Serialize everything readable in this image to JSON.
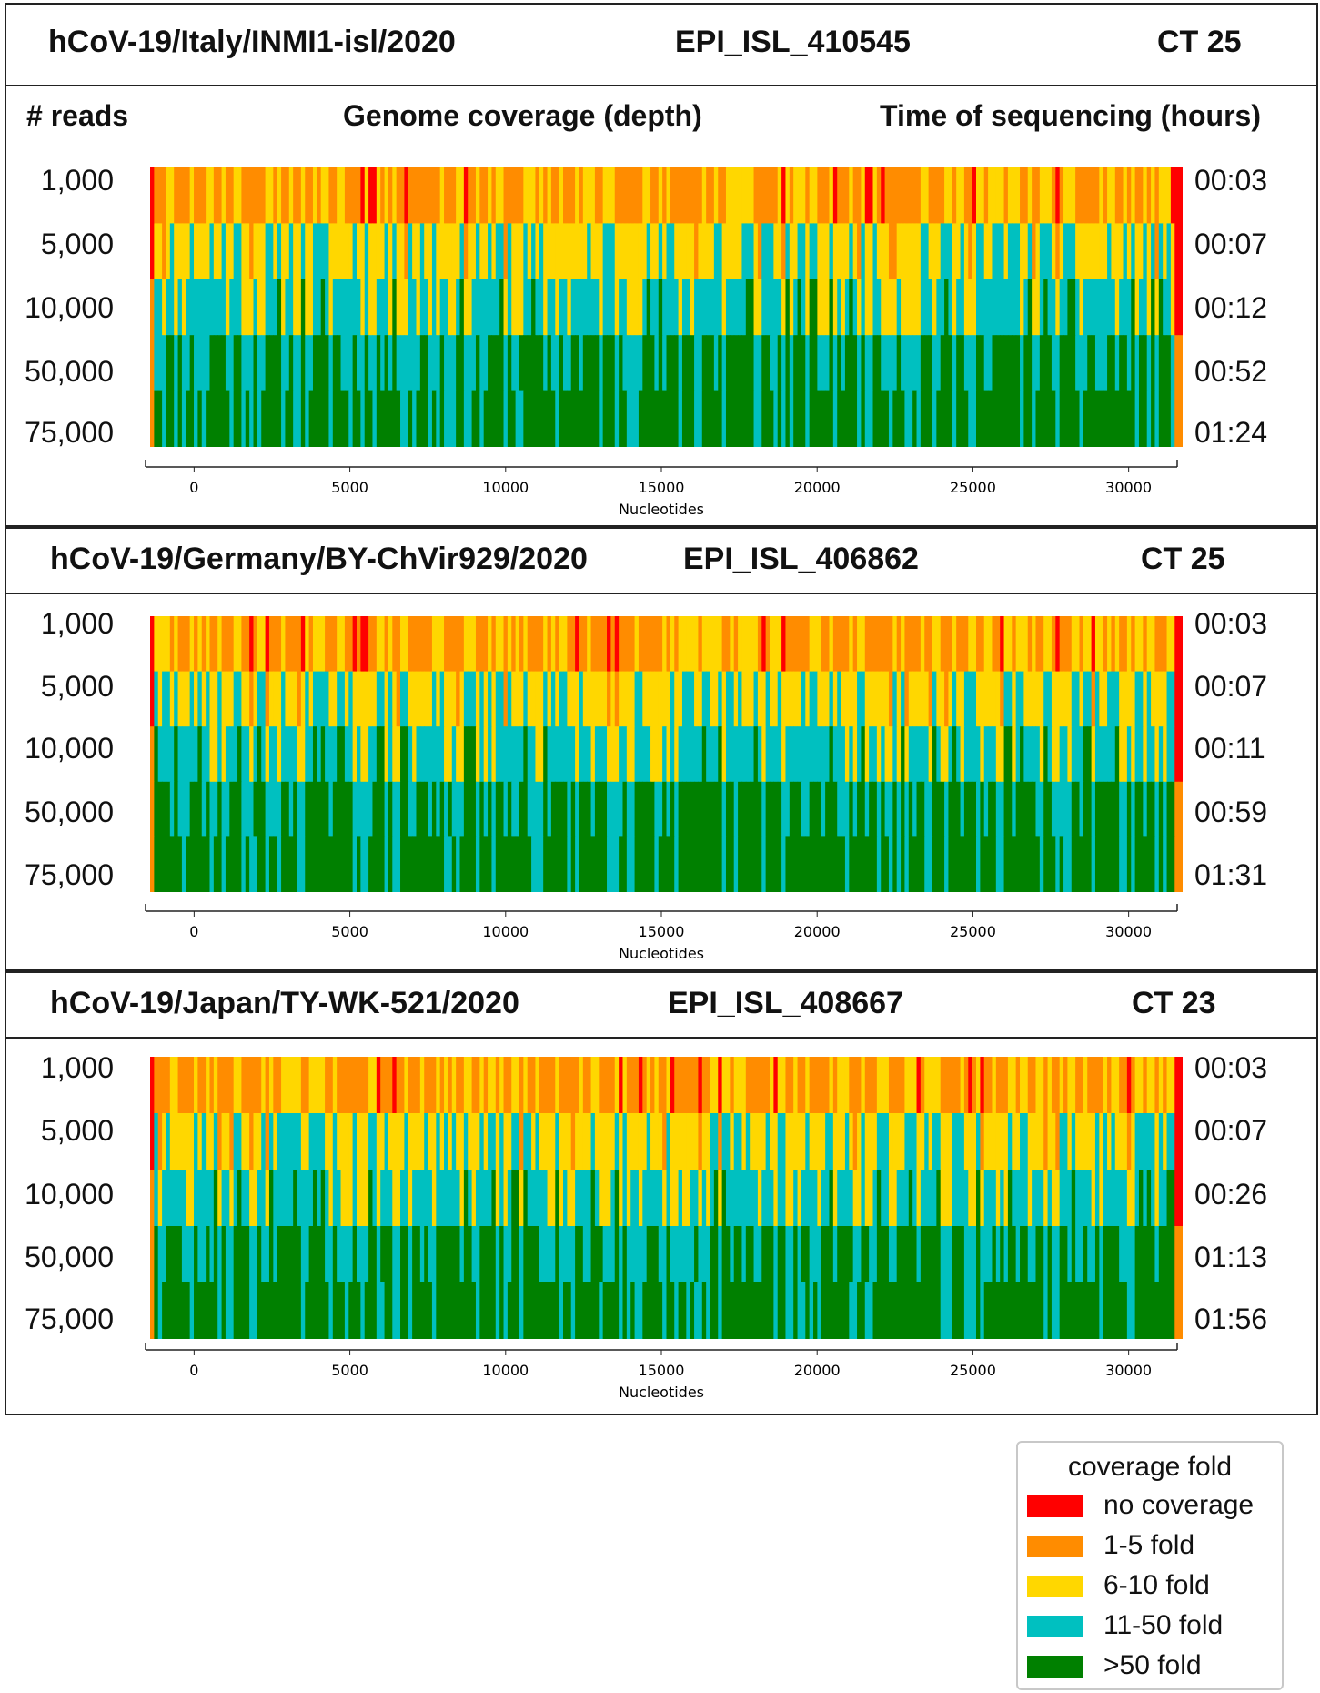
{
  "colors": {
    "no_coverage": "#ff0000",
    "fold_1_5": "#ff8c00",
    "fold_6_10": "#ffd700",
    "fold_11_50": "#00c0c0",
    "fold_gt_50": "#008000"
  },
  "column_headers": {
    "reads": "# reads",
    "coverage": "Genome coverage (depth)",
    "time": "Time of  sequencing (hours)"
  },
  "legend": {
    "title": "coverage fold",
    "items": [
      {
        "key": "no_coverage",
        "label": "no coverage"
      },
      {
        "key": "fold_1_5",
        "label": "1-5 fold"
      },
      {
        "key": "fold_6_10",
        "label": "6-10 fold"
      },
      {
        "key": "fold_11_50",
        "label": "11-50 fold"
      },
      {
        "key": "fold_gt_50",
        "label": ">50 fold"
      }
    ]
  },
  "chart_data": [
    {
      "type": "heatmap",
      "title": "hCoV-19/Italy/INMI1-isl/2020",
      "accession": "EPI_ISL_410545",
      "ct": "CT 25",
      "xlabel": "Nucleotides",
      "xlim": [
        -1500,
        31500
      ],
      "xticks": [
        "0",
        "5000",
        "10000",
        "15000",
        "20000",
        "25000",
        "30000"
      ],
      "rows": [
        "1,000",
        "5,000",
        "10,000",
        "50,000",
        "75,000"
      ],
      "times": [
        "00:03",
        "00:07",
        "00:12",
        "00:52",
        "01:24"
      ],
      "seed": 11
    },
    {
      "type": "heatmap",
      "title": "hCoV-19/Germany/BY-ChVir929/2020",
      "accession": "EPI_ISL_406862",
      "ct": "CT 25",
      "xlabel": "Nucleotides",
      "xlim": [
        -1500,
        31500
      ],
      "xticks": [
        "0",
        "5000",
        "10000",
        "15000",
        "20000",
        "25000",
        "30000"
      ],
      "rows": [
        "1,000",
        "5,000",
        "10,000",
        "50,000",
        "75,000"
      ],
      "times": [
        "00:03",
        "00:07",
        "00:11",
        "00:59",
        "01:31"
      ],
      "seed": 29
    },
    {
      "type": "heatmap",
      "title": "hCoV-19/Japan/TY-WK-521/2020",
      "accession": "EPI_ISL_408667",
      "ct": "CT 23",
      "xlabel": "Nucleotides",
      "xlim": [
        -1500,
        31500
      ],
      "xticks": [
        "0",
        "5000",
        "10000",
        "15000",
        "20000",
        "25000",
        "30000"
      ],
      "rows": [
        "1,000",
        "5,000",
        "10,000",
        "50,000",
        "75,000"
      ],
      "times": [
        "00:03",
        "00:07",
        "00:26",
        "01:13",
        "01:56"
      ],
      "seed": 47
    }
  ]
}
